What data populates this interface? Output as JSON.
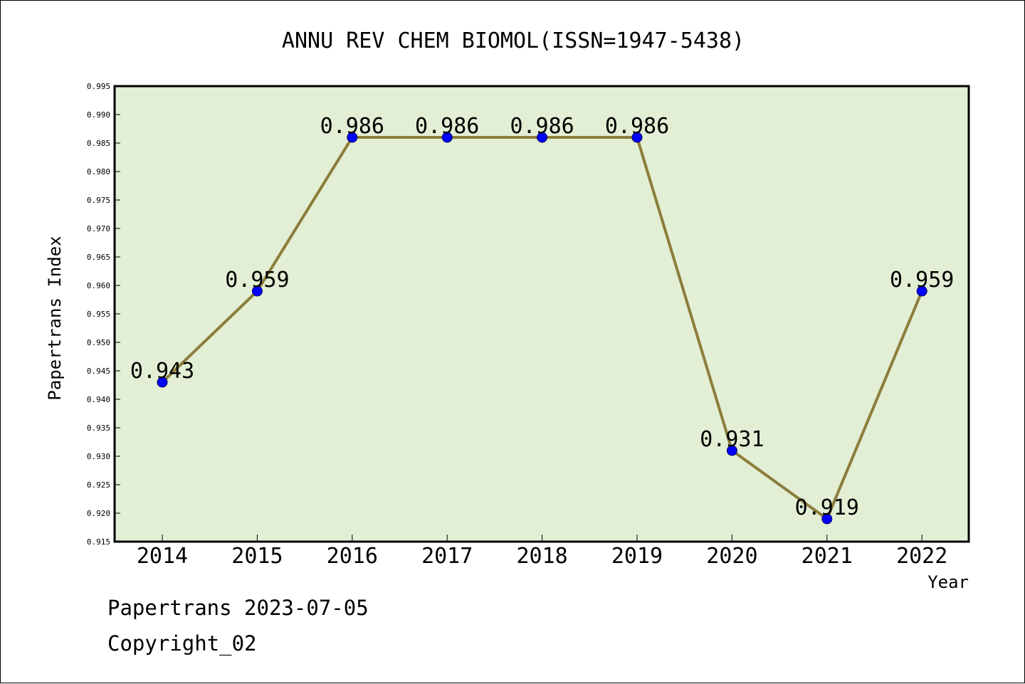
{
  "chart_data": {
    "type": "line",
    "title": "ANNU REV CHEM BIOMOL(ISSN=1947-5438)",
    "xlabel": "Year",
    "ylabel": "Papertrans Index",
    "categories": [
      "2014",
      "2015",
      "2016",
      "2017",
      "2018",
      "2019",
      "2020",
      "2021",
      "2022"
    ],
    "series": [
      {
        "values": [
          0.943,
          0.959,
          0.986,
          0.986,
          0.986,
          0.986,
          0.931,
          0.919,
          0.959
        ],
        "labels": [
          "0.943",
          "0.959",
          "0.986",
          "0.986",
          "0.986",
          "0.986",
          "0.931",
          "0.919",
          "0.959"
        ]
      }
    ],
    "ylim": [
      0.915,
      0.995
    ],
    "yticks": [
      "0.915",
      "0.920",
      "0.925",
      "0.930",
      "0.935",
      "0.940",
      "0.945",
      "0.950",
      "0.955",
      "0.960",
      "0.965",
      "0.970",
      "0.975",
      "0.980",
      "0.985",
      "0.990",
      "0.995"
    ],
    "grid": false,
    "legend": "none"
  },
  "footer": {
    "line1": "Papertrans 2023-07-05",
    "line2": "Copyright_02"
  },
  "colors": {
    "plot_background": "#e2efd5",
    "line": "#8b7d3a",
    "marker": "#0000ff"
  }
}
